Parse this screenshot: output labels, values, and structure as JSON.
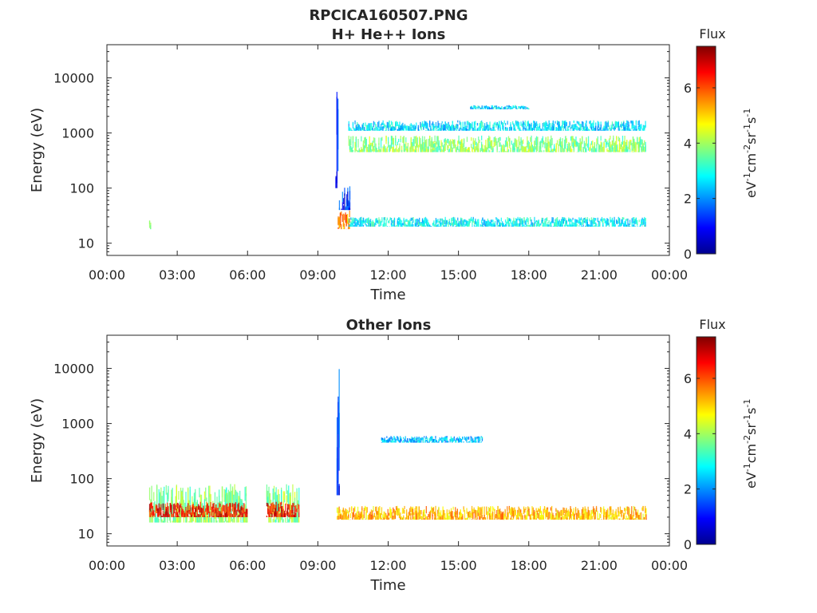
{
  "figure": {
    "title_line1": "RPCICA160507.PNG"
  },
  "chart_data": [
    {
      "type": "heatmap",
      "title": "H+ He++ Ions",
      "xlabel": "Time",
      "ylabel": "Energy (eV)",
      "x_ticks": [
        "00:00",
        "03:00",
        "06:00",
        "09:00",
        "12:00",
        "15:00",
        "18:00",
        "21:00",
        "00:00"
      ],
      "x_range_hours": [
        0,
        24
      ],
      "y_scale": "log",
      "y_range": [
        6,
        40000
      ],
      "y_ticks": [
        10,
        100,
        1000,
        10000
      ],
      "y_tick_labels": [
        "10",
        "100",
        "1000",
        "10000"
      ],
      "colorbar": {
        "label": "Flux",
        "units": "eV-1cm-2sr-1s-1",
        "range": [
          0,
          7.5
        ],
        "ticks": [
          "0",
          "2",
          "4",
          "6"
        ],
        "colormap": "jet"
      },
      "features": [
        {
          "t_start": 1.8,
          "t_end": 1.85,
          "e_low": 18,
          "e_high": 30,
          "level": 3.5
        },
        {
          "t_start": 9.75,
          "t_end": 9.85,
          "e_low": 100,
          "e_high": 30000,
          "level": 1.0
        },
        {
          "t_start": 9.85,
          "t_end": 10.35,
          "e_low": 18,
          "e_high": 40,
          "level": 5.5
        },
        {
          "t_start": 9.9,
          "t_end": 10.35,
          "e_low": 40,
          "e_high": 110,
          "level": 1.2
        },
        {
          "t_start": 10.3,
          "t_end": 23.0,
          "e_low": 450,
          "e_high": 900,
          "level": 3.8
        },
        {
          "t_start": 10.3,
          "t_end": 23.0,
          "e_low": 1100,
          "e_high": 1700,
          "level": 2.6
        },
        {
          "t_start": 15.5,
          "t_end": 18.0,
          "e_low": 2700,
          "e_high": 3200,
          "level": 2.5
        },
        {
          "t_start": 10.3,
          "t_end": 23.0,
          "e_low": 20,
          "e_high": 30,
          "level": 2.8
        }
      ]
    },
    {
      "type": "heatmap",
      "title": "Other Ions",
      "xlabel": "Time",
      "ylabel": "Energy (eV)",
      "x_ticks": [
        "00:00",
        "03:00",
        "06:00",
        "09:00",
        "12:00",
        "15:00",
        "18:00",
        "21:00",
        "00:00"
      ],
      "x_range_hours": [
        0,
        24
      ],
      "y_scale": "log",
      "y_range": [
        6,
        40000
      ],
      "y_ticks": [
        10,
        100,
        1000,
        10000
      ],
      "y_tick_labels": [
        "10",
        "100",
        "1000",
        "10000"
      ],
      "colorbar": {
        "label": "Flux",
        "units": "eV-1cm-2sr-1s-1",
        "range": [
          0,
          7.5
        ],
        "ticks": [
          "0",
          "2",
          "4",
          "6"
        ],
        "colormap": "jet"
      },
      "features": [
        {
          "t_start": 1.8,
          "t_end": 6.0,
          "e_low": 16,
          "e_high": 80,
          "level": 3.8
        },
        {
          "t_start": 1.8,
          "t_end": 6.0,
          "e_low": 20,
          "e_high": 38,
          "level": 6.5
        },
        {
          "t_start": 6.8,
          "t_end": 8.2,
          "e_low": 16,
          "e_high": 80,
          "level": 3.8
        },
        {
          "t_start": 6.8,
          "t_end": 8.2,
          "e_low": 20,
          "e_high": 38,
          "level": 6.5
        },
        {
          "t_start": 9.8,
          "t_end": 9.9,
          "e_low": 50,
          "e_high": 10000,
          "level": 1.2
        },
        {
          "t_start": 9.8,
          "t_end": 23.0,
          "e_low": 18,
          "e_high": 32,
          "level": 5.2
        },
        {
          "t_start": 11.7,
          "t_end": 16.0,
          "e_low": 450,
          "e_high": 600,
          "level": 2.3
        }
      ]
    }
  ]
}
